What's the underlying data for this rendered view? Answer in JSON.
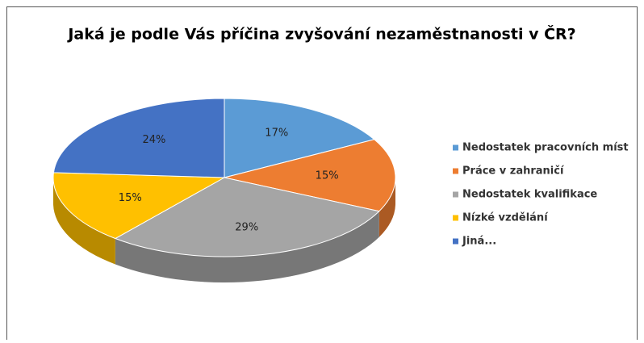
{
  "chart_data": {
    "type": "pie",
    "title": "Jaká je podle Vás příčina zvyšování nezaměstnanosti v ČR?",
    "categories": [
      "Nedostatek pracovních míst",
      "Práce v zahraničí",
      "Nedostatek kvalifikace",
      "Nízké vzdělání",
      "Jiná..."
    ],
    "values": [
      17,
      15,
      29,
      15,
      24
    ],
    "value_labels": [
      "17%",
      "15%",
      "29%",
      "15%",
      "24%"
    ],
    "colors": [
      "#5b9bd5",
      "#ed7d31",
      "#a5a5a5",
      "#ffc000",
      "#4472c4"
    ],
    "legend": "right"
  }
}
